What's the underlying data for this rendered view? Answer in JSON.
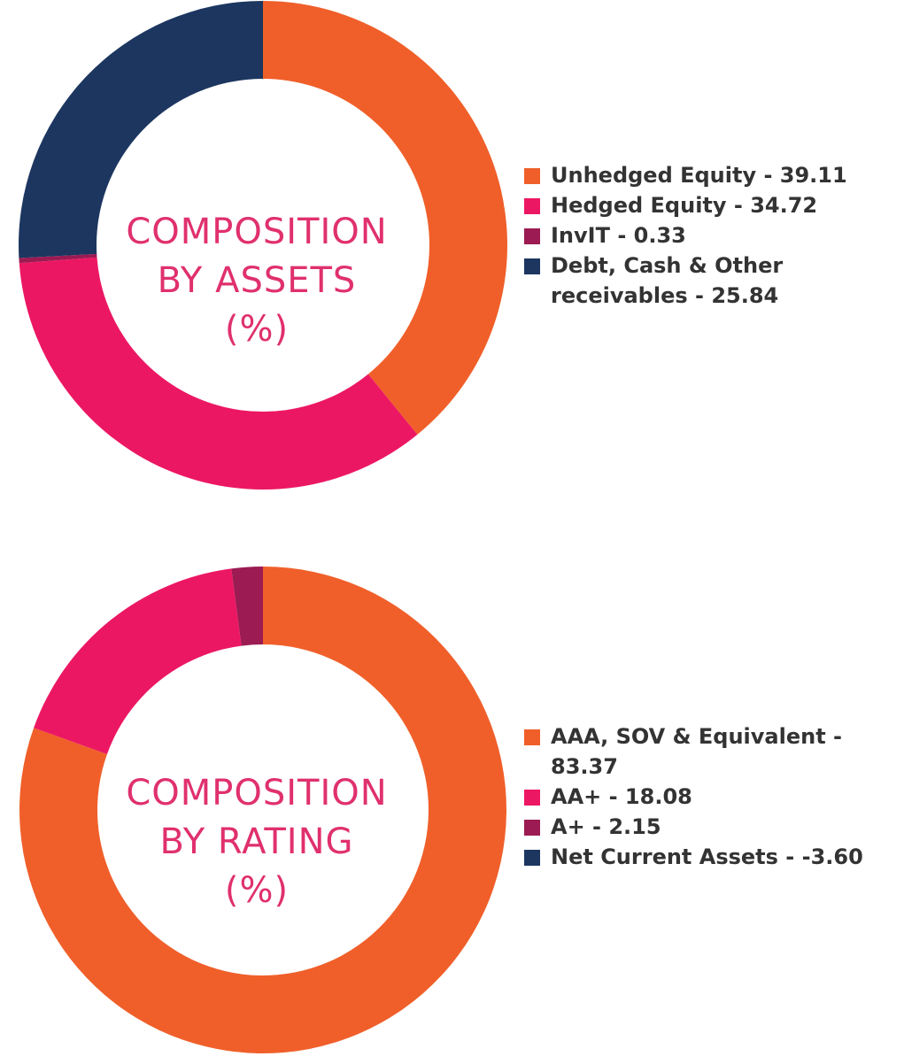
{
  "chart_data": [
    {
      "type": "pie",
      "donut": true,
      "title_lines": [
        "COMPOSITION",
        "BY ASSETS",
        "(%)"
      ],
      "categories": [
        "Unhedged Equity",
        "Hedged Equity",
        "InvIT",
        "Debt, Cash & Other receivables"
      ],
      "values": [
        39.11,
        34.72,
        0.33,
        25.84
      ],
      "colors": [
        "#f05f2a",
        "#ec1763",
        "#9b1b52",
        "#1c3660"
      ],
      "legend_placement": "right",
      "legend": [
        {
          "text": "Unhedged Equity - 39.11",
          "color": "#f05f2a"
        },
        {
          "text": "Hedged Equity - 34.72",
          "color": "#ec1763"
        },
        {
          "text": "InvIT - 0.33",
          "color": "#9b1b52"
        },
        {
          "text": "Debt, Cash & Other receivables - 25.84",
          "color": "#1c3660"
        }
      ]
    },
    {
      "type": "pie",
      "donut": true,
      "title_lines": [
        "COMPOSITION",
        "BY RATING",
        "(%)"
      ],
      "categories": [
        "AAA, SOV & Equivalent",
        "AA+",
        "A+",
        "Net Current Assets"
      ],
      "values": [
        83.37,
        18.08,
        2.15,
        -3.6
      ],
      "colors": [
        "#f05f2a",
        "#ec1763",
        "#9b1b52",
        "#1c3660"
      ],
      "legend_placement": "right",
      "legend": [
        {
          "text": "AAA, SOV & Equivalent - 83.37",
          "color": "#f05f2a"
        },
        {
          "text": "AA+ - 18.08",
          "color": "#ec1763"
        },
        {
          "text": "A+ - 2.15",
          "color": "#9b1b52"
        },
        {
          "text": "Net Current Assets - -3.60",
          "color": "#1c3660"
        }
      ]
    }
  ]
}
